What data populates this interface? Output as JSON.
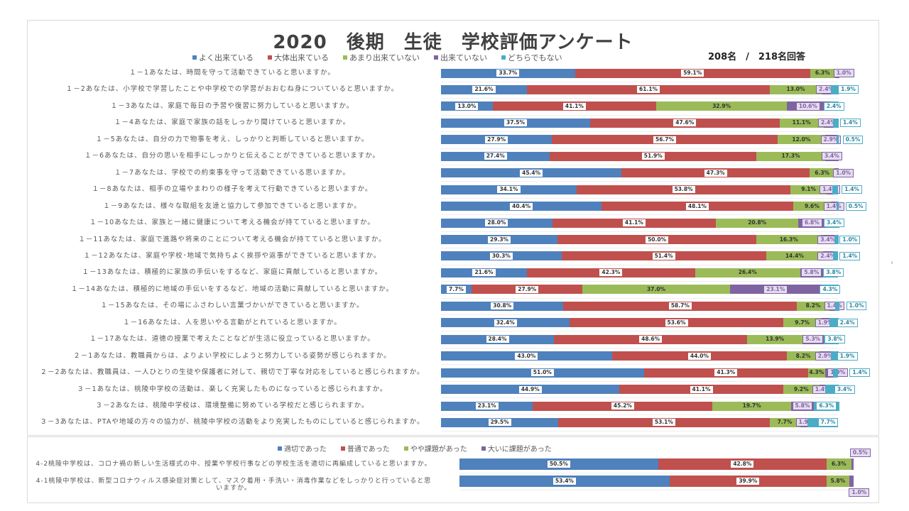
{
  "chart_data": [
    {
      "type": "bar",
      "orientation": "horizontal",
      "stacked": true,
      "title": "2020　後期　生徒　学校評価アンケート",
      "respondents": "208名　/　218名回答",
      "legend_position": "top",
      "series": [
        {
          "name": "よく出来ている",
          "color": "#4f81bd"
        },
        {
          "name": "大体出来ている",
          "color": "#c0504d"
        },
        {
          "name": "あまり出来ていない",
          "color": "#9bbb59"
        },
        {
          "name": "出来ていない",
          "color": "#8064a2"
        },
        {
          "name": "どちらでもない",
          "color": "#4bacc6"
        }
      ],
      "categories": [
        "１－1あなたは、時間を守って活動できていると思いますか。",
        "１－2あなたは、小学校で学習したことや中学校での学習がおおむね身についていると思いますか。",
        "１－3あなたは、家庭で毎日の予習や復習に努力していると思いますか。",
        "１－4あなたは、家庭で家族の話をしっかり聞けていると思いますか。",
        "１－5あなたは、自分の力で物事を考え、しっかりと判断していると思いますか。",
        "１－6あなたは、自分の思いを相手にしっかりと伝えることができていると思いますか。",
        "１－7あなたは、学校での約束事を守って活動できている思いますか。",
        "１－8あなたは、相手の立場やまわりの様子を考えて行動できていると思いますか。",
        "１－9あなたは、様々な取組を友達と協力して参加できていると思いますか。",
        "１－10あなたは、家族と一緒に健康について考える機会が持てていると思いますか。",
        "１－11あなたは、家庭で進路や将来のことについて考える機会が持てていると思いますか。",
        "１－12あなたは、家庭や学校･地域で気持ちよく挨拶や返事ができていると思いますか。",
        "１－13あなたは、積極的に家族の手伝いをするなど、家庭に貢献していると思いますか。",
        "１－14あなたは、積極的に地域の手伝いをするなど、地域の活動に貢献していると思いますか。",
        "１－15あなたは、その場にふさわしい言葉づかいができていると思いますか。",
        "１－16あなたは、人を思いやる言動がとれていると思いますか。",
        "１－17あなたは、道徳の授業で考えたことなどが生活に役立っていると思いますか。",
        "２－1あなたは、教職員からは、よりよい学校にしようと努力している姿勢が感じられますか。",
        "２－2あなたは、教職員は、一人ひとりの生徒や保護者に対して、親切で丁寧な対応をしていると感じられますか。",
        "３－1あなたは、桃陵中学校の活動は、楽しく充実したものになっていると感じられますか。",
        "３－2あなたは、桃陵中学校は、環境整備に努めている学校だと感じられますか。",
        "３－3あなたは、PTAや地域の方々の協力が、桃陵中学校の活動をより充実したものにしていると感じられますか。"
      ],
      "values": [
        [
          33.7,
          59.1,
          6.3,
          1.0,
          0
        ],
        [
          21.6,
          61.1,
          13.0,
          2.4,
          1.9
        ],
        [
          13.0,
          41.1,
          32.9,
          10.6,
          2.4
        ],
        [
          37.5,
          47.6,
          11.1,
          2.4,
          1.4
        ],
        [
          27.9,
          56.7,
          12.0,
          2.9,
          0.5
        ],
        [
          27.4,
          51.9,
          17.3,
          3.4,
          0
        ],
        [
          45.4,
          47.3,
          6.3,
          1.0,
          0
        ],
        [
          34.1,
          53.8,
          9.1,
          1.4,
          1.4
        ],
        [
          40.4,
          48.1,
          9.6,
          1.4,
          0.5
        ],
        [
          28.0,
          41.1,
          20.8,
          6.8,
          3.4
        ],
        [
          29.3,
          50.0,
          16.3,
          3.4,
          1.0
        ],
        [
          30.3,
          51.4,
          14.4,
          2.4,
          1.4
        ],
        [
          21.6,
          42.3,
          26.4,
          5.8,
          3.8
        ],
        [
          7.7,
          27.9,
          37.0,
          23.1,
          4.3
        ],
        [
          30.8,
          58.7,
          8.2,
          1.4,
          1.0
        ],
        [
          32.4,
          53.6,
          9.7,
          1.9,
          2.4
        ],
        [
          28.4,
          48.6,
          13.9,
          5.3,
          3.8
        ],
        [
          43.0,
          44.0,
          8.2,
          2.9,
          1.9
        ],
        [
          51.0,
          41.3,
          4.3,
          1.9,
          1.4
        ],
        [
          44.9,
          41.1,
          9.2,
          1.4,
          3.4
        ],
        [
          23.1,
          45.2,
          19.7,
          5.8,
          6.3
        ],
        [
          29.5,
          53.1,
          7.7,
          1.9,
          7.7
        ]
      ],
      "xlim": [
        0,
        100
      ],
      "unit": "%"
    },
    {
      "type": "bar",
      "orientation": "horizontal",
      "stacked": true,
      "legend_position": "top",
      "series": [
        {
          "name": "適切であった",
          "color": "#4f81bd"
        },
        {
          "name": "普通であった",
          "color": "#c0504d"
        },
        {
          "name": "やや課題があった",
          "color": "#9bbb59"
        },
        {
          "name": "大いに課題があった",
          "color": "#8064a2"
        }
      ],
      "categories": [
        "4-2桃陵中学校は、コロナ禍の新しい生活様式の中、授業や学校行事などの学校生活を適切に再編成していると思いますか。",
        "4-1桃陵中学校は、新型コロナウィルス感染症対策として、マスク着用・手洗い・消毒作業などをしっかりと行っていると思いますか。"
      ],
      "values": [
        [
          50.5,
          42.8,
          6.3,
          0.5
        ],
        [
          53.4,
          39.9,
          5.8,
          1.0
        ]
      ],
      "xlim": [
        0,
        100
      ],
      "unit": "%"
    }
  ]
}
